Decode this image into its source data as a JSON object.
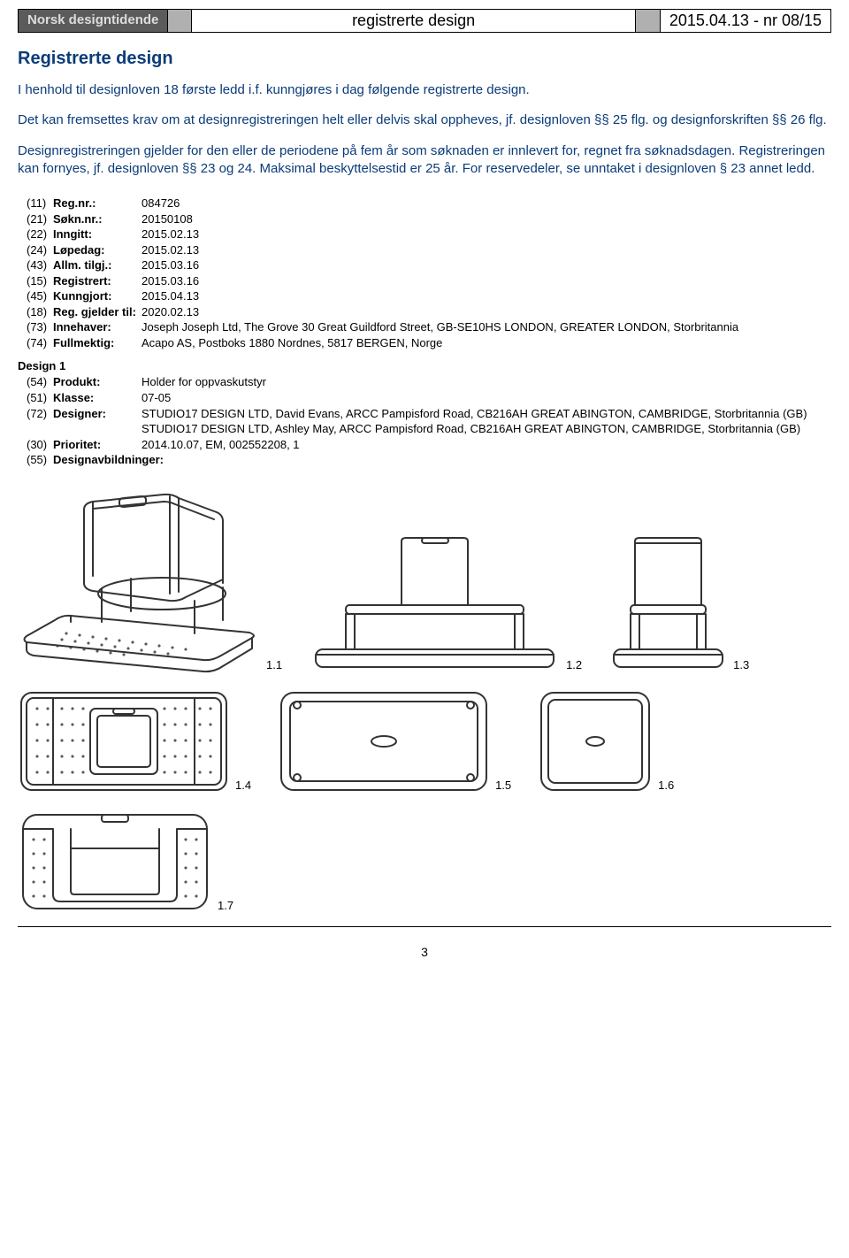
{
  "header": {
    "brand": "Norsk designtidende",
    "center": "registrerte design",
    "right": "2015.04.13 - nr 08/15"
  },
  "section_title": "Registrerte design",
  "intro": {
    "p1": "I henhold til designloven 18 første ledd i.f. kunngjøres i dag følgende registrerte design.",
    "p2": "Det kan fremsettes krav om at designregistreringen helt eller delvis skal oppheves, jf. designloven §§ 25 flg. og designforskriften §§ 26 flg.",
    "p3": "Designregistreringen gjelder for den eller de periodene på fem år som søknaden er innlevert for, regnet fra søknadsdagen. Registreringen kan fornyes, jf. designloven §§ 23 og 24. Maksimal beskyttelsestid er 25 år. For reservedeler, se unntaket i designloven § 23 annet ledd."
  },
  "record": {
    "fields": [
      {
        "code": "(11)",
        "label": "Reg.nr.:",
        "value": "084726"
      },
      {
        "code": "(21)",
        "label": "Søkn.nr.:",
        "value": "20150108"
      },
      {
        "code": "(22)",
        "label": "Inngitt:",
        "value": "2015.02.13"
      },
      {
        "code": "(24)",
        "label": "Løpedag:",
        "value": "2015.02.13"
      },
      {
        "code": "(43)",
        "label": "Allm. tilgj.:",
        "value": "2015.03.16"
      },
      {
        "code": "(15)",
        "label": "Registrert:",
        "value": "2015.03.16"
      },
      {
        "code": "(45)",
        "label": "Kunngjort:",
        "value": "2015.04.13"
      },
      {
        "code": "(18)",
        "label": "Reg. gjelder til:",
        "value": "2020.02.13"
      },
      {
        "code": "(73)",
        "label": "Innehaver:",
        "value": "Joseph Joseph Ltd, The Grove 30 Great Guildford Street, GB-SE10HS LONDON, GREATER LONDON, Storbritannia"
      },
      {
        "code": "(74)",
        "label": "Fullmektig:",
        "value": "Acapo AS, Postboks 1880 Nordnes, 5817 BERGEN, Norge"
      }
    ],
    "design_title": "Design 1",
    "design_fields": [
      {
        "code": "(54)",
        "label": "Produkt:",
        "value": "Holder for oppvaskutstyr"
      },
      {
        "code": "(51)",
        "label": "Klasse:",
        "value": "07-05"
      },
      {
        "code": "(72)",
        "label": "Designer:",
        "value": "STUDIO17 DESIGN LTD, David Evans, ARCC Pampisford Road, CB216AH GREAT ABINGTON, CAMBRIDGE, Storbritannia (GB)\nSTUDIO17 DESIGN LTD, Ashley May, ARCC Pampisford Road, CB216AH GREAT ABINGTON, CAMBRIDGE, Storbritannia (GB)"
      },
      {
        "code": "(30)",
        "label": "Prioritet:",
        "value": "2014.10.07, EM, 002552208, 1"
      },
      {
        "code": "(55)",
        "label": "Designavbildninger:",
        "value": ""
      }
    ]
  },
  "figures": {
    "labels": [
      "1.1",
      "1.2",
      "1.3",
      "1.4",
      "1.5",
      "1.6",
      "1.7"
    ]
  },
  "page_number": "3",
  "colors": {
    "blue": "#0b3c7a",
    "header_dark": "#5b5b5b",
    "header_text": "#dcdcdc",
    "header_grey": "#b0b0b0"
  }
}
